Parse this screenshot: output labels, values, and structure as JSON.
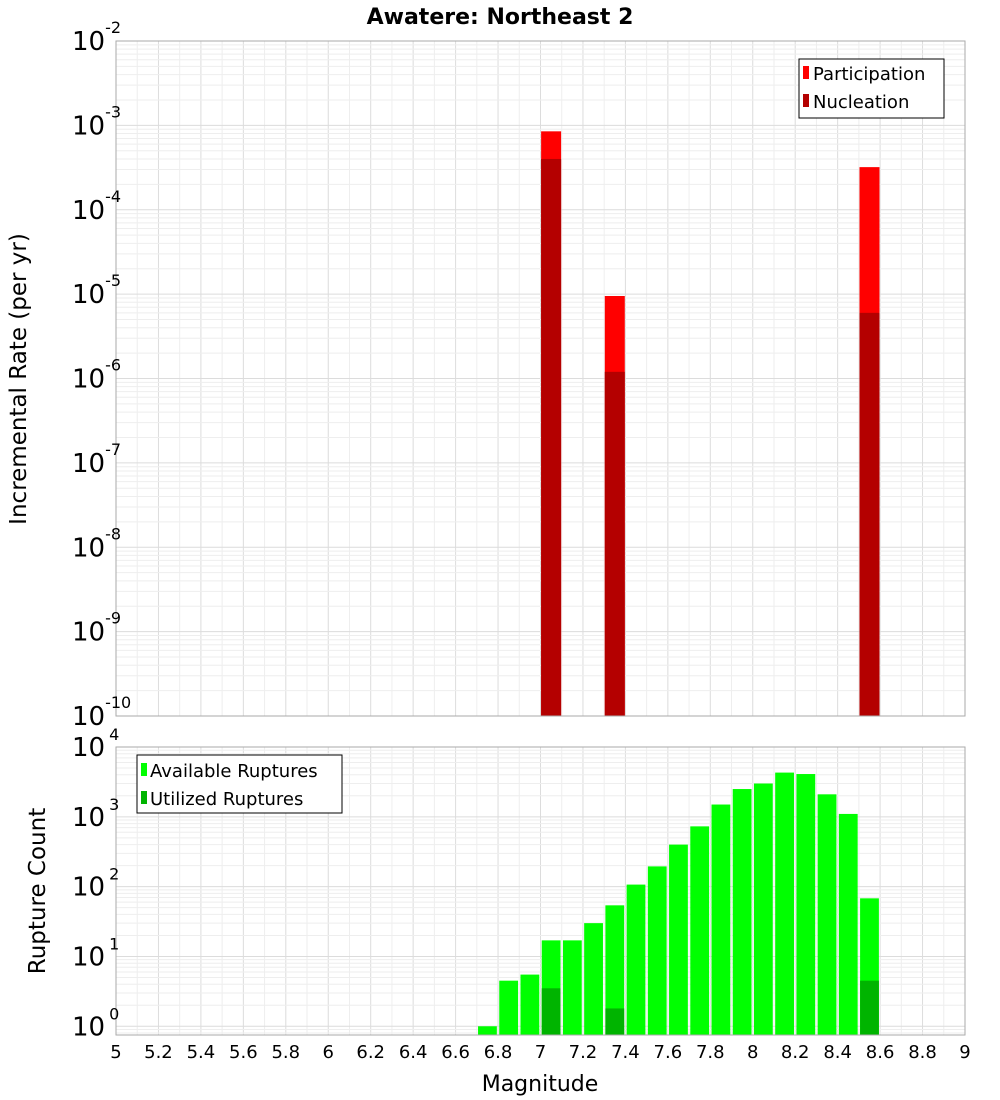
{
  "chart_data": [
    {
      "type": "bar",
      "title": "Awatere: Northeast 2",
      "ylabel": "Incremental Rate (per yr)",
      "yscale": "log",
      "ylim": [
        1e-10,
        0.01
      ],
      "y_exponents": [
        -10,
        -9,
        -8,
        -7,
        -6,
        -5,
        -4,
        -3,
        -2
      ],
      "legend_position": "top-right",
      "series": [
        {
          "name": "Participation",
          "color": "#ff0000",
          "x": [
            7.05,
            7.35,
            8.55
          ],
          "values": [
            0.00085,
            9.5e-06,
            0.00032
          ]
        },
        {
          "name": "Nucleation",
          "color": "#b40000",
          "x": [
            7.05,
            7.35,
            8.55
          ],
          "values": [
            0.0004,
            1.2e-06,
            6e-06
          ]
        }
      ]
    },
    {
      "type": "bar",
      "xlabel": "Magnitude",
      "ylabel": "Rupture Count",
      "yscale": "log",
      "ylim": [
        0.75,
        10000
      ],
      "y_exponents": [
        0,
        1,
        2,
        3,
        4
      ],
      "xlim": [
        5,
        9
      ],
      "xticks": [
        "5",
        "5.2",
        "5.4",
        "5.6",
        "5.8",
        "6",
        "6.2",
        "6.4",
        "6.6",
        "6.8",
        "7",
        "7.2",
        "7.4",
        "7.6",
        "7.8",
        "8",
        "8.2",
        "8.4",
        "8.6",
        "8.8",
        "9"
      ],
      "legend_position": "top-left",
      "series": [
        {
          "name": "Available Ruptures",
          "color": "#00ff00",
          "x": [
            6.75,
            6.85,
            6.95,
            7.05,
            7.15,
            7.25,
            7.35,
            7.45,
            7.55,
            7.65,
            7.75,
            7.85,
            7.95,
            8.05,
            8.15,
            8.25,
            8.35,
            8.45,
            8.55
          ],
          "values": [
            1,
            4.5,
            5.5,
            17,
            17,
            30,
            54,
            107,
            195,
            400,
            730,
            1500,
            2500,
            3000,
            4300,
            4100,
            2100,
            1100,
            68
          ]
        },
        {
          "name": "Utilized Ruptures",
          "color": "#00b400",
          "x": [
            7.05,
            7.35,
            8.55
          ],
          "values": [
            3.5,
            1.8,
            4.5
          ]
        }
      ]
    }
  ]
}
